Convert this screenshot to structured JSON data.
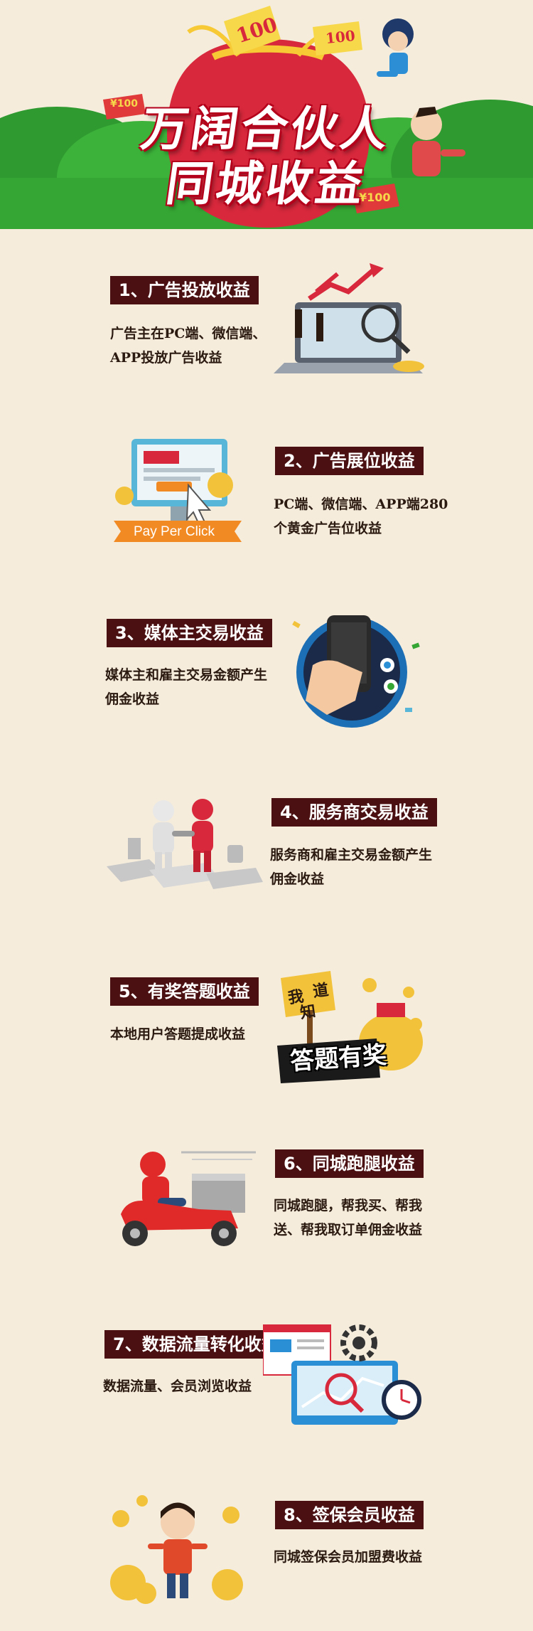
{
  "header": {
    "title_line1": "万阔合伙人",
    "title_line2": "同城收益",
    "money_labels": [
      "100",
      "100",
      "¥100",
      "¥100"
    ]
  },
  "sections": [
    {
      "title": "1、广告投放收益",
      "desc_lines": [
        "广告主在PC端、微信端、",
        "APP投放广告收益"
      ]
    },
    {
      "title": "2、广告展位收益",
      "desc_lines": [
        "PC端、微信端、APP端280",
        "个黄金广告位收益"
      ],
      "badge": "Pay Per Click"
    },
    {
      "title": "3、媒体主交易收益",
      "desc_lines": [
        "媒体主和雇主交易金额产生",
        "佣金收益"
      ]
    },
    {
      "title": "4、服务商交易收益",
      "desc_lines": [
        "服务商和雇主交易金额产生",
        "佣金收益"
      ]
    },
    {
      "title": "5、有奖答题收益",
      "desc_lines": [
        "本地用户答题提成收益"
      ],
      "badge": "答题有奖",
      "sign": [
        "我",
        "知",
        "道"
      ]
    },
    {
      "title": "6、同城跑腿收益",
      "desc_lines": [
        "同城跑腿，帮我买、帮我",
        "送、帮我取订单佣金收益"
      ]
    },
    {
      "title": "7、数据流量转化收益",
      "desc_lines": [
        "数据流量、会员浏览收益"
      ]
    },
    {
      "title": "8、签保会员收益",
      "desc_lines": [
        "同城签保会员加盟费收益"
      ]
    }
  ],
  "colors": {
    "background": "#f5ecdc",
    "title_bg": "#4a1012",
    "hero_red": "#d7283c",
    "grass": "#35a634"
  }
}
